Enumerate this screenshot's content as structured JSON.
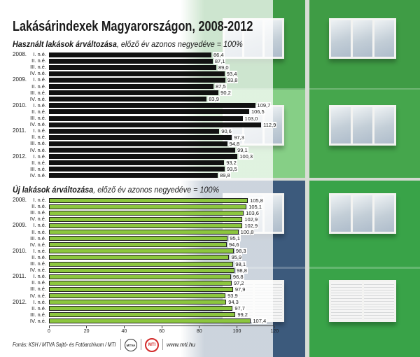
{
  "title": "Lakásárindexek Magyarországon, 2008-2012",
  "chart_data": [
    {
      "type": "bar",
      "orientation": "horizontal",
      "title": "Használt lakások árváltozása, előző év azonos negyedéve = 100%",
      "years": [
        "2008.",
        "2009.",
        "2010.",
        "2011.",
        "2012."
      ],
      "quarters": [
        "I. n.é.",
        "II. n.é.",
        "III. n.é.",
        "IV. n.é."
      ],
      "values": [
        86.4,
        87.1,
        89.0,
        93.4,
        93.8,
        87.5,
        90.2,
        83.9,
        109.7,
        106.5,
        103.0,
        112.9,
        90.6,
        97.3,
        94.8,
        99.1,
        100.3,
        93.2,
        93.5,
        89.8
      ],
      "xlim": [
        0,
        120
      ],
      "bar_color": "#111111"
    },
    {
      "type": "bar",
      "orientation": "horizontal",
      "title": "Új lakások árváltozása, előző év azonos negyedéve = 100%",
      "years": [
        "2008.",
        "2009.",
        "2010.",
        "2011.",
        "2012."
      ],
      "quarters": [
        "I. n.é.",
        "II. n.é.",
        "III. n.é.",
        "IV. n.é."
      ],
      "values": [
        105.8,
        105.1,
        103.6,
        102.9,
        102.9,
        100.8,
        95.1,
        94.6,
        98.3,
        95.9,
        98.1,
        98.8,
        96.8,
        97.2,
        97.9,
        93.9,
        94.3,
        97.7,
        99.2,
        107.4
      ],
      "xlim": [
        0,
        120
      ],
      "xticks": [
        0,
        20,
        40,
        60,
        80,
        100,
        120
      ],
      "bar_color": "#8cc63f",
      "bar_outline": "#222222"
    }
  ],
  "footer": {
    "source": "Forrás: KSH / MTVA Sajtó- és Fotóarchívum / MTI",
    "logo_mtva": "MTVA",
    "logo_mti": "MTI",
    "website": "www.mti.hu"
  }
}
